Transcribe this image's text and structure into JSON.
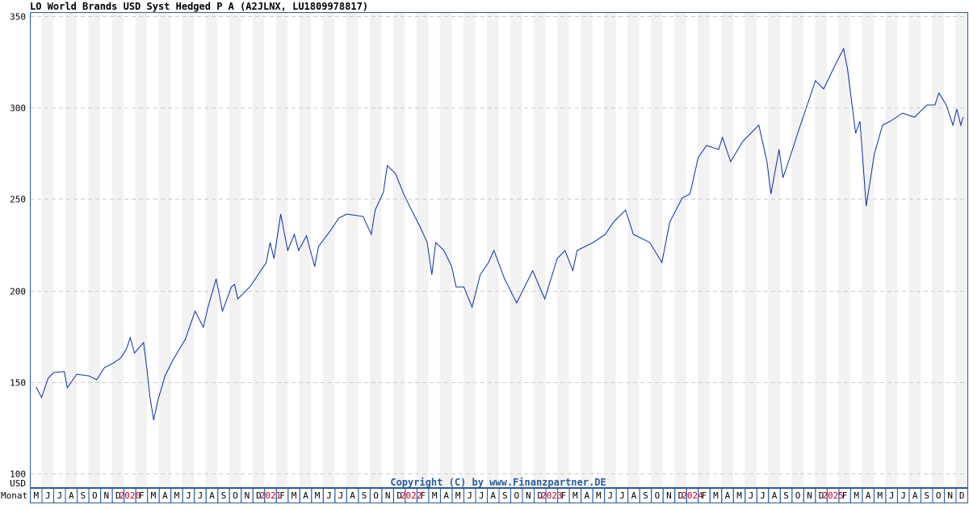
{
  "chart_data": {
    "type": "line",
    "title": "LO World Brands USD Syst Hedged P A (A2JLNX, LU1809978817)",
    "ylabel": "USD",
    "xlabel": "Monat",
    "ylim": [
      100,
      350
    ],
    "yticks": [
      100,
      150,
      200,
      250,
      300,
      350
    ],
    "xlim": [
      "2019-05-01",
      "2025-12-31"
    ],
    "grid": true,
    "copyright": "Copyright (C) by www.Finanzpartner.DE",
    "line_color": "#0a2fa0",
    "year_label_color": "#c00030",
    "month_labels": [
      "M",
      "J",
      "J",
      "A",
      "S",
      "O",
      "N",
      "D",
      "2020",
      "F",
      "M",
      "A",
      "M",
      "J",
      "J",
      "A",
      "S",
      "O",
      "N",
      "D",
      "2021",
      "F",
      "M",
      "A",
      "M",
      "J",
      "J",
      "A",
      "S",
      "O",
      "N",
      "D",
      "2022",
      "F",
      "M",
      "A",
      "M",
      "J",
      "J",
      "A",
      "S",
      "O",
      "N",
      "D",
      "2023",
      "F",
      "M",
      "A",
      "M",
      "J",
      "J",
      "A",
      "S",
      "O",
      "N",
      "D",
      "2024",
      "F",
      "M",
      "A",
      "M",
      "J",
      "J",
      "A",
      "S",
      "O",
      "N",
      "D",
      "2025",
      "F",
      "M",
      "A",
      "M",
      "J",
      "J",
      "A",
      "S",
      "O",
      "N",
      "D"
    ],
    "series": [
      {
        "points": [
          [
            "2019-05-17",
            147.3
          ],
          [
            "2019-06-01",
            141.5
          ],
          [
            "2019-06-18",
            152.1
          ],
          [
            "2019-07-02",
            155.2
          ],
          [
            "2019-07-29",
            155.7
          ],
          [
            "2019-08-07",
            146.8
          ],
          [
            "2019-09-01",
            154.3
          ],
          [
            "2019-10-01",
            153.4
          ],
          [
            "2019-10-22",
            151.2
          ],
          [
            "2019-11-12",
            157.9
          ],
          [
            "2019-12-03",
            160.1
          ],
          [
            "2019-12-24",
            163.2
          ],
          [
            "2020-01-08",
            168.0
          ],
          [
            "2020-01-18",
            174.2
          ],
          [
            "2020-01-29",
            165.8
          ],
          [
            "2020-02-22",
            171.6
          ],
          [
            "2020-03-01",
            156.5
          ],
          [
            "2020-03-08",
            142.4
          ],
          [
            "2020-03-18",
            129.2
          ],
          [
            "2020-03-29",
            140.2
          ],
          [
            "2020-04-17",
            153.4
          ],
          [
            "2020-05-08",
            162.3
          ],
          [
            "2020-06-09",
            173.3
          ],
          [
            "2020-07-04",
            188.8
          ],
          [
            "2020-07-25",
            179.9
          ],
          [
            "2020-08-07",
            191.0
          ],
          [
            "2020-08-28",
            206.4
          ],
          [
            "2020-09-14",
            188.8
          ],
          [
            "2020-10-07",
            202.0
          ],
          [
            "2020-10-15",
            203.4
          ],
          [
            "2020-10-23",
            195.4
          ],
          [
            "2020-11-24",
            202.0
          ],
          [
            "2021-01-06",
            215.3
          ],
          [
            "2021-01-16",
            226.3
          ],
          [
            "2021-01-26",
            217.5
          ],
          [
            "2021-02-13",
            241.8
          ],
          [
            "2021-03-01",
            221.9
          ],
          [
            "2021-03-18",
            230.7
          ],
          [
            "2021-03-29",
            221.9
          ],
          [
            "2021-04-19",
            229.9
          ],
          [
            "2021-05-10",
            213.1
          ],
          [
            "2021-05-20",
            224.1
          ],
          [
            "2021-06-21",
            232.9
          ],
          [
            "2021-07-12",
            239.6
          ],
          [
            "2021-08-02",
            241.8
          ],
          [
            "2021-09-14",
            240.5
          ],
          [
            "2021-10-05",
            230.7
          ],
          [
            "2021-10-15",
            244.0
          ],
          [
            "2021-11-06",
            253.7
          ],
          [
            "2021-11-16",
            268.3
          ],
          [
            "2021-12-07",
            263.9
          ],
          [
            "2021-12-28",
            252.8
          ],
          [
            "2022-01-18",
            244.0
          ],
          [
            "2022-02-09",
            235.2
          ],
          [
            "2022-02-28",
            226.3
          ],
          [
            "2022-03-10",
            208.7
          ],
          [
            "2022-03-20",
            226.3
          ],
          [
            "2022-04-11",
            221.9
          ],
          [
            "2022-05-01",
            213.1
          ],
          [
            "2022-05-12",
            202.0
          ],
          [
            "2022-06-02",
            202.0
          ],
          [
            "2022-06-23",
            191.0
          ],
          [
            "2022-07-14",
            208.7
          ],
          [
            "2022-08-05",
            215.3
          ],
          [
            "2022-08-19",
            221.9
          ],
          [
            "2022-09-16",
            206.4
          ],
          [
            "2022-10-17",
            193.2
          ],
          [
            "2022-11-18",
            206.4
          ],
          [
            "2022-11-28",
            210.9
          ],
          [
            "2022-12-29",
            195.4
          ],
          [
            "2023-02-01",
            217.5
          ],
          [
            "2023-02-21",
            221.9
          ],
          [
            "2023-03-11",
            210.9
          ],
          [
            "2023-03-22",
            221.9
          ],
          [
            "2023-05-03",
            226.3
          ],
          [
            "2023-06-04",
            230.7
          ],
          [
            "2023-06-25",
            237.4
          ],
          [
            "2023-07-26",
            244.0
          ],
          [
            "2023-08-16",
            230.7
          ],
          [
            "2023-09-28",
            226.3
          ],
          [
            "2023-10-29",
            215.3
          ],
          [
            "2023-11-19",
            237.4
          ],
          [
            "2023-12-21",
            250.6
          ],
          [
            "2024-01-11",
            252.8
          ],
          [
            "2024-02-02",
            272.7
          ],
          [
            "2024-02-23",
            279.3
          ],
          [
            "2024-03-24",
            277.1
          ],
          [
            "2024-04-04",
            283.7
          ],
          [
            "2024-04-25",
            270.5
          ],
          [
            "2024-05-26",
            281.5
          ],
          [
            "2024-07-07",
            290.4
          ],
          [
            "2024-07-28",
            270.5
          ],
          [
            "2024-08-08",
            252.8
          ],
          [
            "2024-08-29",
            277.1
          ],
          [
            "2024-09-09",
            261.7
          ],
          [
            "2024-09-30",
            274.9
          ],
          [
            "2024-10-20",
            288.2
          ],
          [
            "2024-11-11",
            301.4
          ],
          [
            "2024-12-02",
            314.7
          ],
          [
            "2024-12-23",
            310.2
          ],
          [
            "2025-01-23",
            323.5
          ],
          [
            "2025-02-14",
            332.3
          ],
          [
            "2025-02-24",
            321.3
          ],
          [
            "2025-03-15",
            286.0
          ],
          [
            "2025-03-26",
            292.6
          ],
          [
            "2025-04-12",
            246.2
          ],
          [
            "2025-05-03",
            274.9
          ],
          [
            "2025-05-24",
            290.4
          ],
          [
            "2025-06-14",
            292.6
          ],
          [
            "2025-07-15",
            297.0
          ],
          [
            "2025-08-16",
            294.8
          ],
          [
            "2025-09-17",
            301.4
          ],
          [
            "2025-10-08",
            301.4
          ],
          [
            "2025-10-18",
            308.0
          ],
          [
            "2025-11-07",
            301.4
          ],
          [
            "2025-11-24",
            290.4
          ],
          [
            "2025-12-04",
            299.2
          ],
          [
            "2025-12-14",
            290.4
          ],
          [
            "2025-12-20",
            294.8
          ]
        ]
      }
    ]
  }
}
